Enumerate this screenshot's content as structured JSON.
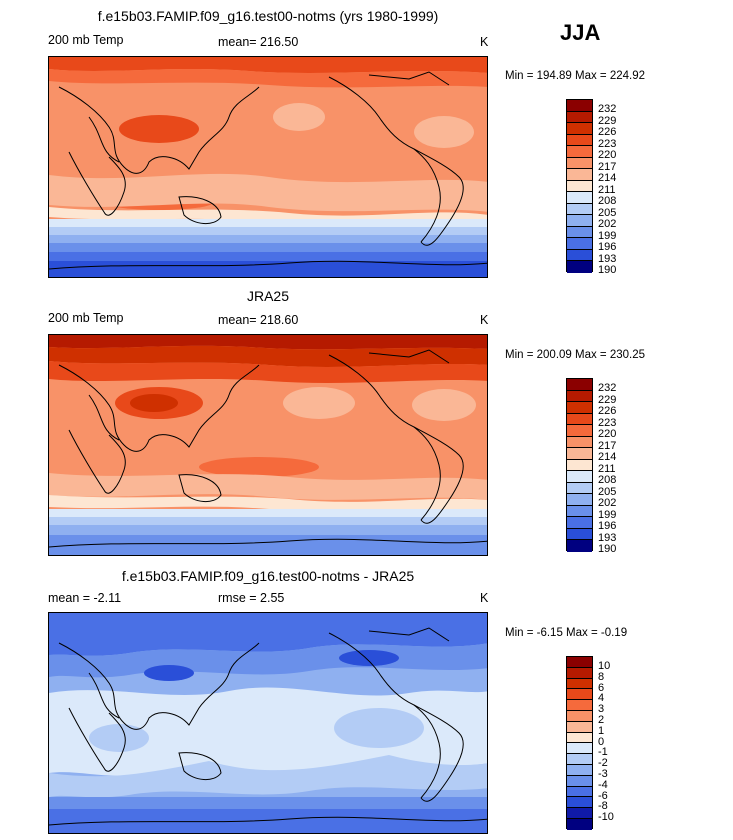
{
  "season": "JJA",
  "panels": [
    {
      "title": "f.e15b03.FAMIP.f09_g16.test00-notms (yrs 1980-1999)",
      "left_label": "200 mb Temp",
      "center_label": "mean= 216.50",
      "unit": "K",
      "minmax": "Min = 194.89 Max = 224.92",
      "levels": [
        "232",
        "229",
        "226",
        "223",
        "220",
        "217",
        "214",
        "211",
        "208",
        "205",
        "202",
        "199",
        "196",
        "193",
        "190"
      ]
    },
    {
      "title": "JRA25",
      "left_label": "200 mb Temp",
      "center_label": "mean= 218.60",
      "unit": "K",
      "minmax": "Min = 200.09 Max = 230.25",
      "levels": [
        "232",
        "229",
        "226",
        "223",
        "220",
        "217",
        "214",
        "211",
        "208",
        "205",
        "202",
        "199",
        "196",
        "193",
        "190"
      ]
    },
    {
      "title": "f.e15b03.FAMIP.f09_g16.test00-notms - JRA25",
      "left_label": "mean =  -2.11",
      "center_label": "rmse =   2.55",
      "unit": "K",
      "minmax": "Min =  -6.15 Max =  -0.19",
      "levels": [
        "10",
        "8",
        "6",
        "4",
        "3",
        "2",
        "1",
        "0",
        "-1",
        "-2",
        "-3",
        "-4",
        "-6",
        "-8",
        "-10"
      ]
    }
  ],
  "colors": {
    "scale": [
      "#8b0000",
      "#b51a00",
      "#cf3000",
      "#e8491a",
      "#f56a3c",
      "#f89268",
      "#fab796",
      "#fde6d2",
      "#dbe9fa",
      "#b3ccf5",
      "#8fb0f0",
      "#6a90ea",
      "#4a70e5",
      "#2a4fd8",
      "#101aa8",
      "#000080"
    ]
  }
}
